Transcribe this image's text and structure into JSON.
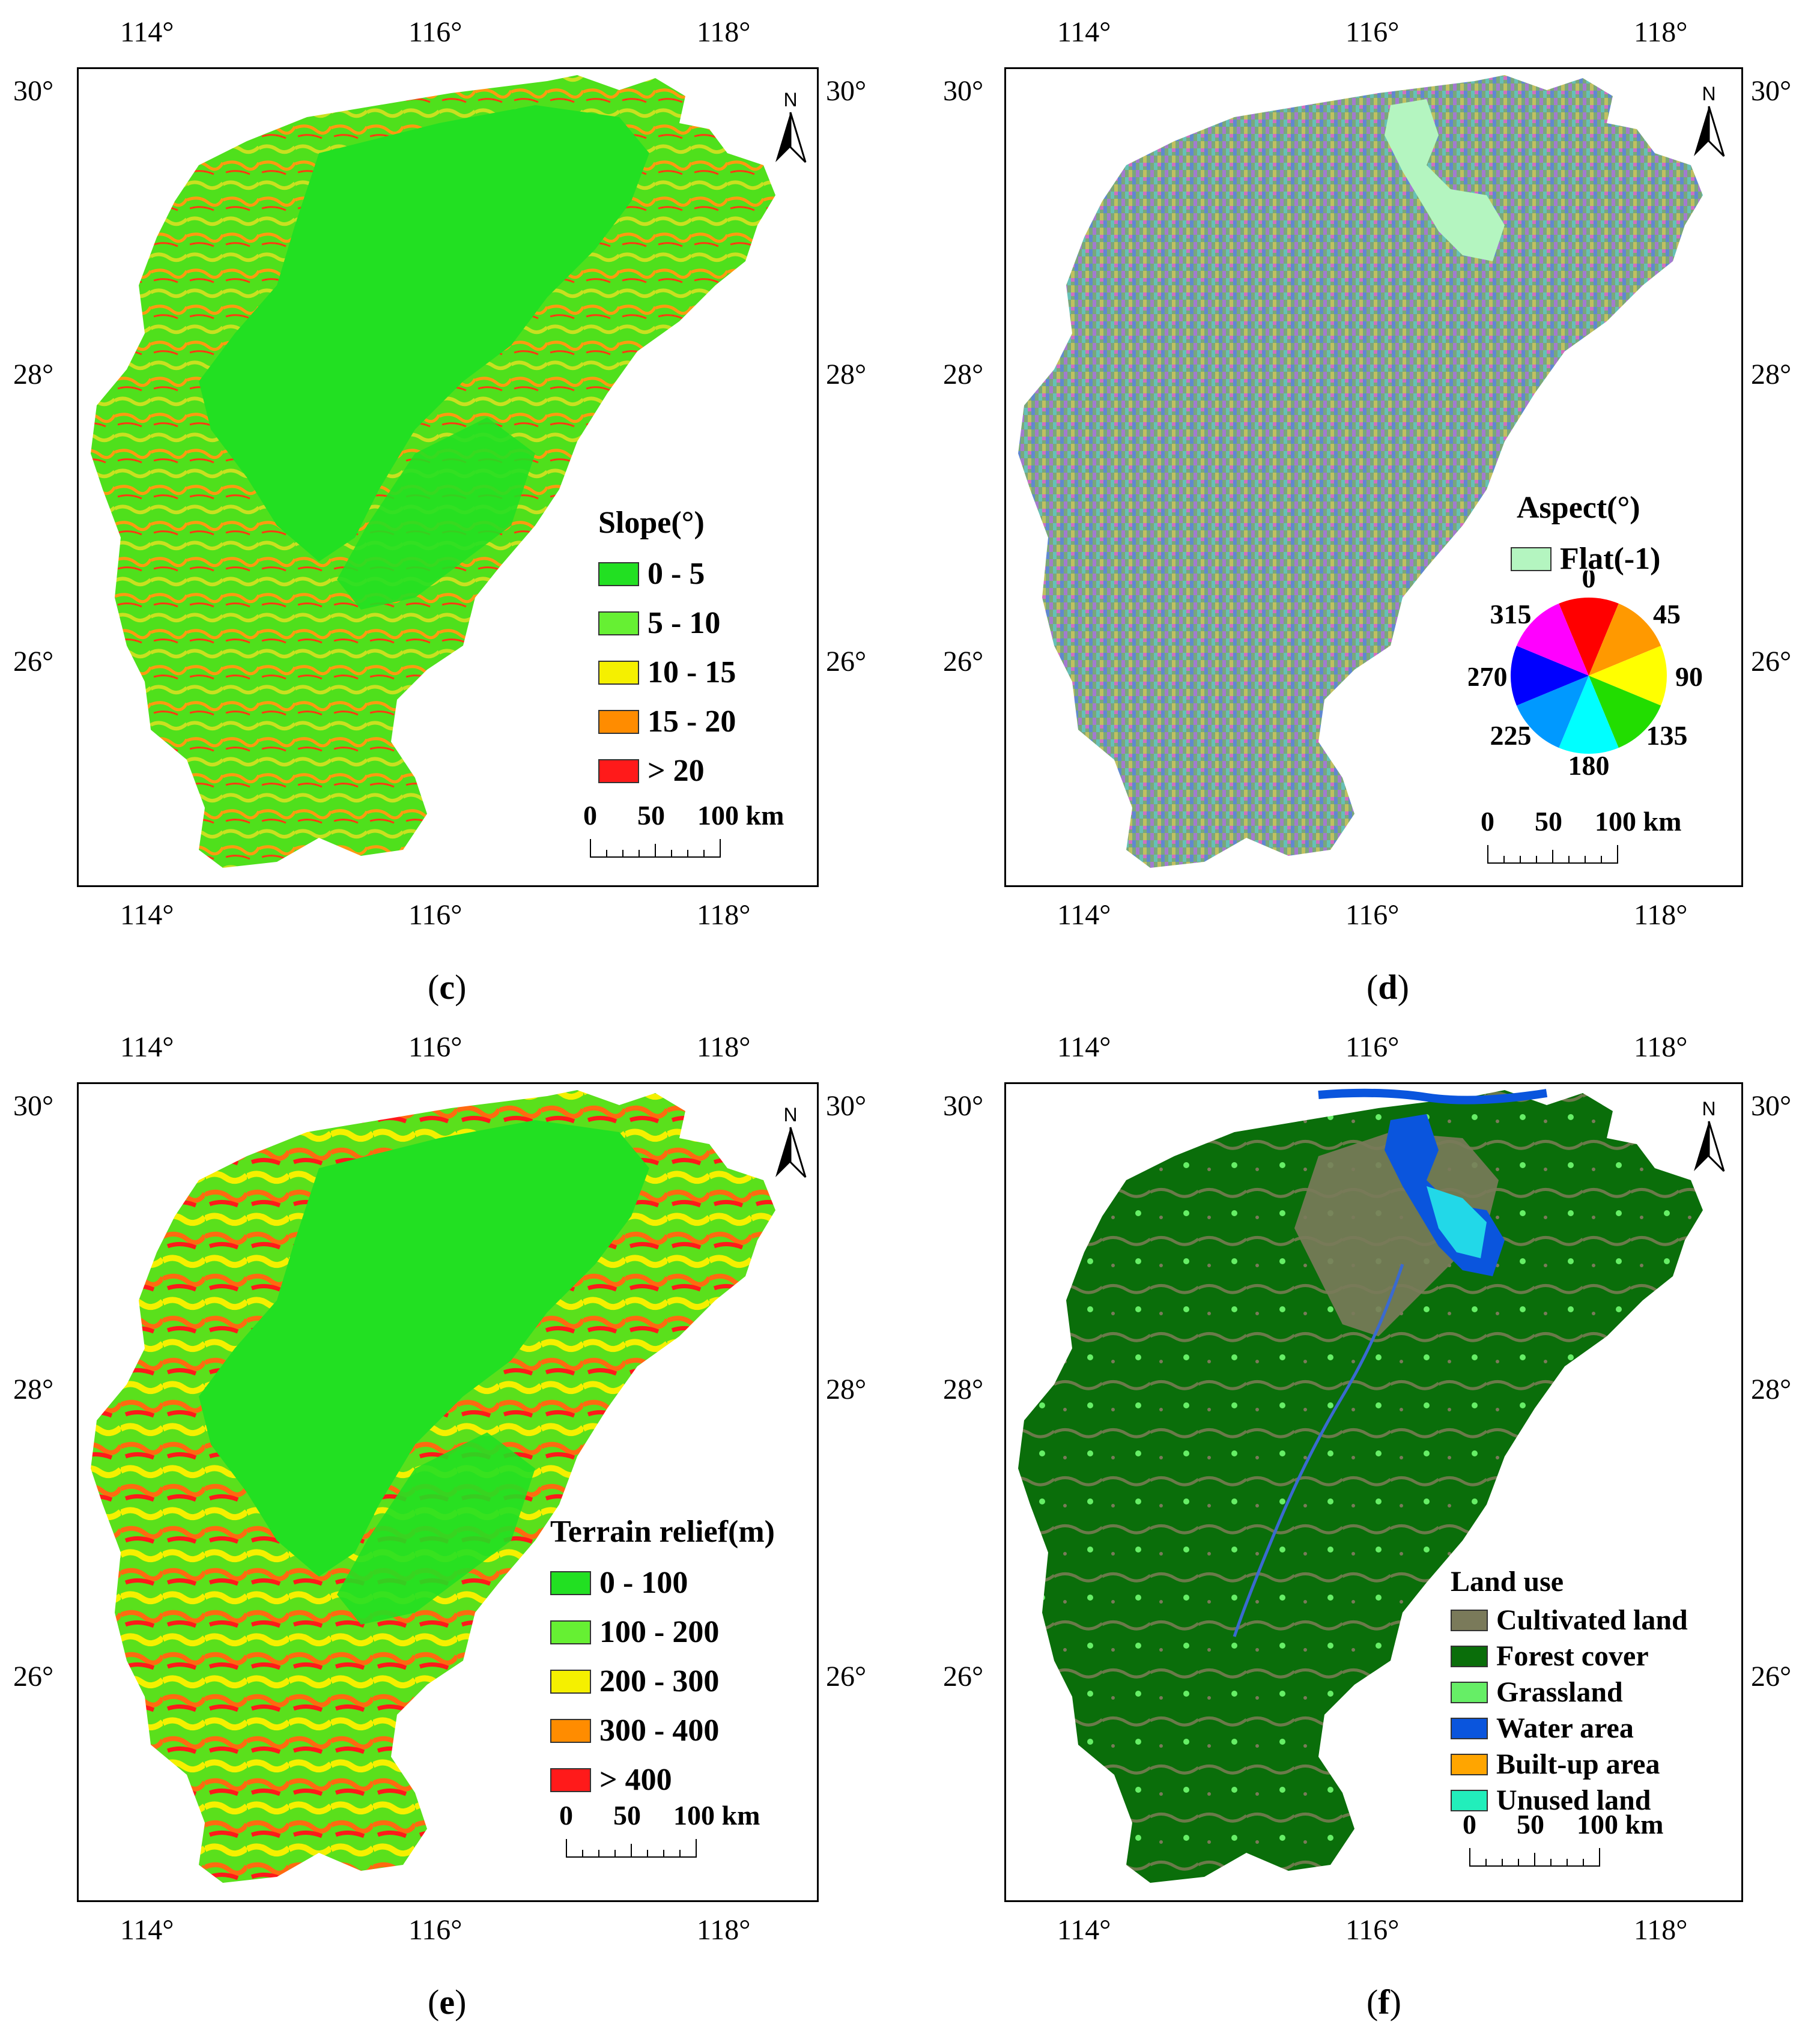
{
  "axes": {
    "lon_labels": [
      "114°",
      "116°",
      "118°"
    ],
    "lat_labels": [
      "30°",
      "28°",
      "26°"
    ]
  },
  "north_label": "N",
  "scale": {
    "labels": [
      "0",
      "50",
      "100 km"
    ]
  },
  "panels": [
    {
      "id": "c",
      "caption_open": "(",
      "caption_letter": "c",
      "caption_close": ")",
      "legend_title": "Slope(°)",
      "legend_items": [
        {
          "label": "0 - 5",
          "color": "#22e022"
        },
        {
          "label": "5 - 10",
          "color": "#66f033"
        },
        {
          "label": "10 - 15",
          "color": "#f5f000"
        },
        {
          "label": "15 - 20",
          "color": "#ff8c00"
        },
        {
          "label": "> 20",
          "color": "#ff1a1a"
        }
      ]
    },
    {
      "id": "d",
      "caption_open": "(",
      "caption_letter": "d",
      "caption_close": ")",
      "legend_title": "Aspect(°)",
      "flat_label": "Flat(-1)",
      "flat_color": "#b4f5c0",
      "aspect_directions": [
        "0",
        "45",
        "90",
        "135",
        "180",
        "225",
        "270",
        "315"
      ],
      "aspect_colors": [
        "#ff0000",
        "#ff9900",
        "#ffff00",
        "#22dd00",
        "#00ffff",
        "#0099ff",
        "#0000ff",
        "#ff00ff"
      ]
    },
    {
      "id": "e",
      "caption_open": "(",
      "caption_letter": "e",
      "caption_close": ")",
      "legend_title": "Terrain relief(m)",
      "legend_items": [
        {
          "label": "0 - 100",
          "color": "#22e022"
        },
        {
          "label": "100 - 200",
          "color": "#66f033"
        },
        {
          "label": "200 - 300",
          "color": "#f5f000"
        },
        {
          "label": "300 - 400",
          "color": "#ff8c00"
        },
        {
          "label": "> 400",
          "color": "#ff1a1a"
        }
      ]
    },
    {
      "id": "f",
      "caption_open": "(",
      "caption_letter": "f",
      "caption_close": ")",
      "legend_title": "Land use",
      "legend_items": [
        {
          "label": "Cultivated land",
          "color": "#7a7a5a"
        },
        {
          "label": "Forest cover",
          "color": "#0a6e0a"
        },
        {
          "label": "Grassland",
          "color": "#66ee66"
        },
        {
          "label": "Water area",
          "color": "#0a55dd"
        },
        {
          "label": "Built-up area",
          "color": "#ffa500"
        },
        {
          "label": "Unused land",
          "color": "#22eebb"
        }
      ]
    }
  ]
}
